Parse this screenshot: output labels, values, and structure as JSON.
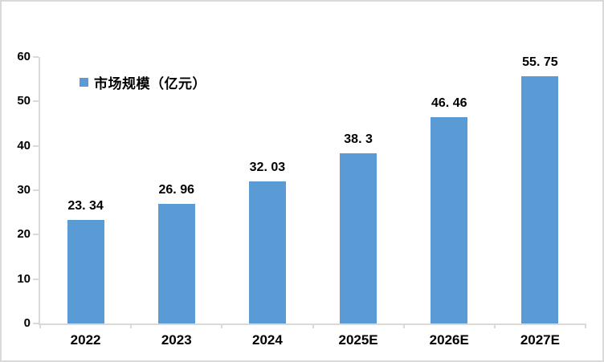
{
  "frame": {
    "background": "#ffffff",
    "border_color": "#d9d9d9"
  },
  "legend": {
    "label": "市场规模（亿元）",
    "marker_color": "#5b9bd5",
    "position": "top-left"
  },
  "chart_data": {
    "type": "bar",
    "title": "",
    "xlabel": "",
    "ylabel": "",
    "series_name": "市场规模（亿元）",
    "categories": [
      "2022",
      "2023",
      "2024",
      "2025E",
      "2026E",
      "2027E"
    ],
    "values": [
      23.34,
      26.96,
      32.03,
      38.3,
      46.46,
      55.75
    ],
    "value_labels": [
      "23. 34",
      "26. 96",
      "32. 03",
      "38. 3",
      "46. 46",
      "55. 75"
    ],
    "ylim": [
      0,
      60
    ],
    "yticks": [
      0,
      10,
      20,
      30,
      40,
      50,
      60
    ],
    "grid": false,
    "bar_color": "#5b9bd5",
    "axis_color": "#d9d9d9",
    "text_color": "#000000",
    "legend_position": "top-left"
  }
}
